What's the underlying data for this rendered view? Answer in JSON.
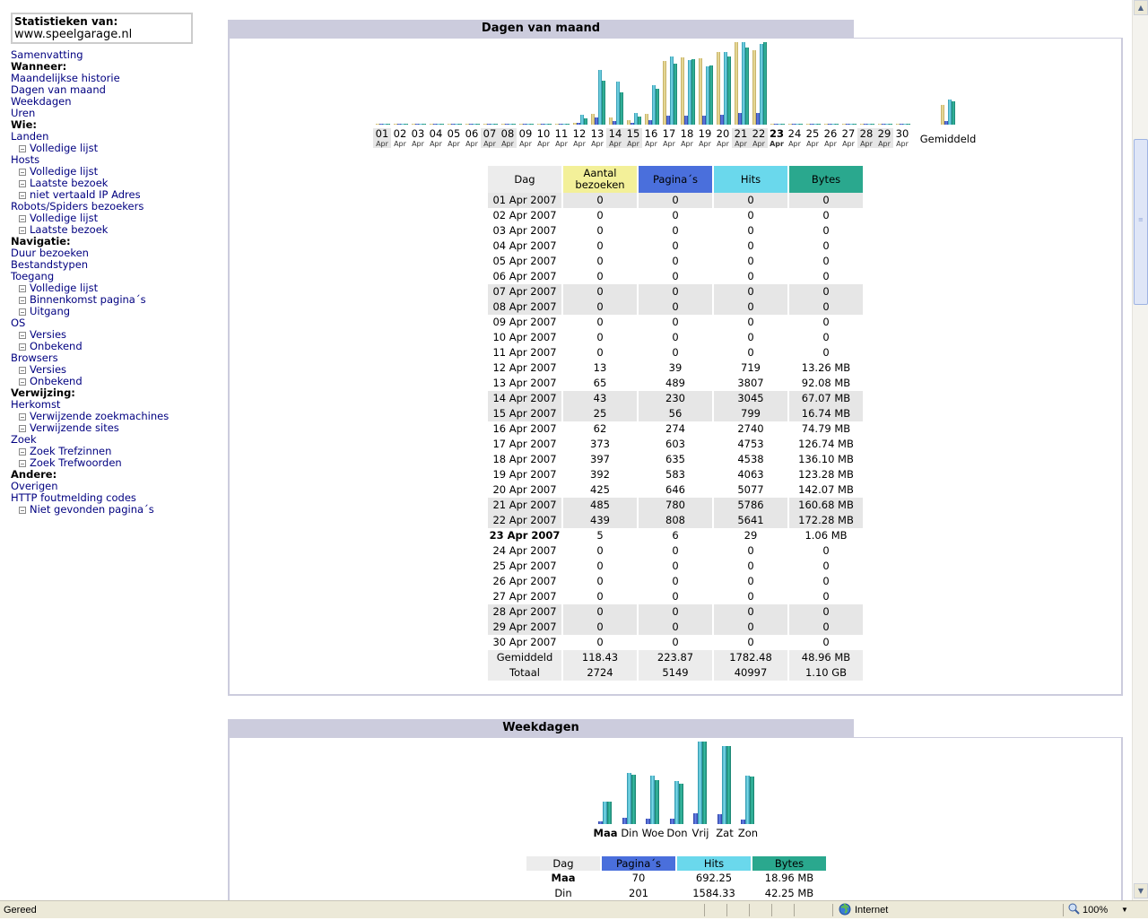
{
  "sidebar": {
    "stats_title": "Statistieken van:",
    "site": "www.speelgarage.nl",
    "items": [
      {
        "label": "Samenvatting",
        "type": "link"
      },
      {
        "label": "Wanneer:",
        "type": "head"
      },
      {
        "label": "Maandelijkse historie",
        "type": "link"
      },
      {
        "label": "Dagen van maand",
        "type": "link"
      },
      {
        "label": "Weekdagen",
        "type": "link"
      },
      {
        "label": "Uren",
        "type": "link"
      },
      {
        "label": "Wie:",
        "type": "head"
      },
      {
        "label": "Landen",
        "type": "link"
      },
      {
        "label": "Volledige lijst",
        "type": "sub"
      },
      {
        "label": "Hosts",
        "type": "link"
      },
      {
        "label": "Volledige lijst",
        "type": "sub"
      },
      {
        "label": "Laatste bezoek",
        "type": "sub"
      },
      {
        "label": "niet vertaald IP Adres",
        "type": "sub"
      },
      {
        "label": "Robots/Spiders bezoekers",
        "type": "link"
      },
      {
        "label": "Volledige lijst",
        "type": "sub"
      },
      {
        "label": "Laatste bezoek",
        "type": "sub"
      },
      {
        "label": "Navigatie:",
        "type": "head"
      },
      {
        "label": "Duur bezoeken",
        "type": "link"
      },
      {
        "label": "Bestandstypen",
        "type": "link"
      },
      {
        "label": "Toegang",
        "type": "link"
      },
      {
        "label": "Volledige lijst",
        "type": "sub"
      },
      {
        "label": "Binnenkomst pagina´s",
        "type": "sub"
      },
      {
        "label": "Uitgang",
        "type": "sub"
      },
      {
        "label": "OS",
        "type": "link"
      },
      {
        "label": "Versies",
        "type": "sub"
      },
      {
        "label": "Onbekend",
        "type": "sub"
      },
      {
        "label": "Browsers",
        "type": "link"
      },
      {
        "label": "Versies",
        "type": "sub"
      },
      {
        "label": "Onbekend",
        "type": "sub"
      },
      {
        "label": "Verwijzing:",
        "type": "head"
      },
      {
        "label": "Herkomst",
        "type": "link"
      },
      {
        "label": "Verwijzende zoekmachines",
        "type": "sub"
      },
      {
        "label": "Verwijzende sites",
        "type": "sub"
      },
      {
        "label": "Zoek",
        "type": "link"
      },
      {
        "label": "Zoek Trefzinnen",
        "type": "sub"
      },
      {
        "label": "Zoek Trefwoorden",
        "type": "sub"
      },
      {
        "label": "Andere:",
        "type": "head"
      },
      {
        "label": "Overigen",
        "type": "link"
      },
      {
        "label": "HTTP foutmelding codes",
        "type": "link"
      },
      {
        "label": "Niet gevonden pagina´s",
        "type": "sub"
      }
    ]
  },
  "days_section": {
    "title": "Dagen van maand",
    "month_label": "Apr",
    "average_label": "Gemiddeld",
    "columns": [
      "Dag",
      "Aantal bezoeken",
      "Pagina´s",
      "Hits",
      "Bytes"
    ],
    "rows": [
      {
        "day": "01",
        "date": "01 Apr 2007",
        "visits": 0,
        "pages": 0,
        "hits": 0,
        "bytes": "0",
        "weekend": true
      },
      {
        "day": "02",
        "date": "02 Apr 2007",
        "visits": 0,
        "pages": 0,
        "hits": 0,
        "bytes": "0",
        "weekend": false
      },
      {
        "day": "03",
        "date": "03 Apr 2007",
        "visits": 0,
        "pages": 0,
        "hits": 0,
        "bytes": "0",
        "weekend": false
      },
      {
        "day": "04",
        "date": "04 Apr 2007",
        "visits": 0,
        "pages": 0,
        "hits": 0,
        "bytes": "0",
        "weekend": false
      },
      {
        "day": "05",
        "date": "05 Apr 2007",
        "visits": 0,
        "pages": 0,
        "hits": 0,
        "bytes": "0",
        "weekend": false
      },
      {
        "day": "06",
        "date": "06 Apr 2007",
        "visits": 0,
        "pages": 0,
        "hits": 0,
        "bytes": "0",
        "weekend": false
      },
      {
        "day": "07",
        "date": "07 Apr 2007",
        "visits": 0,
        "pages": 0,
        "hits": 0,
        "bytes": "0",
        "weekend": true
      },
      {
        "day": "08",
        "date": "08 Apr 2007",
        "visits": 0,
        "pages": 0,
        "hits": 0,
        "bytes": "0",
        "weekend": true
      },
      {
        "day": "09",
        "date": "09 Apr 2007",
        "visits": 0,
        "pages": 0,
        "hits": 0,
        "bytes": "0",
        "weekend": false
      },
      {
        "day": "10",
        "date": "10 Apr 2007",
        "visits": 0,
        "pages": 0,
        "hits": 0,
        "bytes": "0",
        "weekend": false
      },
      {
        "day": "11",
        "date": "11 Apr 2007",
        "visits": 0,
        "pages": 0,
        "hits": 0,
        "bytes": "0",
        "weekend": false
      },
      {
        "day": "12",
        "date": "12 Apr 2007",
        "visits": 13,
        "pages": 39,
        "hits": 719,
        "bytes": "13.26 MB",
        "bytes_mb": 13.26,
        "weekend": false
      },
      {
        "day": "13",
        "date": "13 Apr 2007",
        "visits": 65,
        "pages": 489,
        "hits": 3807,
        "bytes": "92.08 MB",
        "bytes_mb": 92.08,
        "weekend": false
      },
      {
        "day": "14",
        "date": "14 Apr 2007",
        "visits": 43,
        "pages": 230,
        "hits": 3045,
        "bytes": "67.07 MB",
        "bytes_mb": 67.07,
        "weekend": true
      },
      {
        "day": "15",
        "date": "15 Apr 2007",
        "visits": 25,
        "pages": 56,
        "hits": 799,
        "bytes": "16.74 MB",
        "bytes_mb": 16.74,
        "weekend": true
      },
      {
        "day": "16",
        "date": "16 Apr 2007",
        "visits": 62,
        "pages": 274,
        "hits": 2740,
        "bytes": "74.79 MB",
        "bytes_mb": 74.79,
        "weekend": false
      },
      {
        "day": "17",
        "date": "17 Apr 2007",
        "visits": 373,
        "pages": 603,
        "hits": 4753,
        "bytes": "126.74 MB",
        "bytes_mb": 126.74,
        "weekend": false
      },
      {
        "day": "18",
        "date": "18 Apr 2007",
        "visits": 397,
        "pages": 635,
        "hits": 4538,
        "bytes": "136.10 MB",
        "bytes_mb": 136.1,
        "weekend": false
      },
      {
        "day": "19",
        "date": "19 Apr 2007",
        "visits": 392,
        "pages": 583,
        "hits": 4063,
        "bytes": "123.28 MB",
        "bytes_mb": 123.28,
        "weekend": false
      },
      {
        "day": "20",
        "date": "20 Apr 2007",
        "visits": 425,
        "pages": 646,
        "hits": 5077,
        "bytes": "142.07 MB",
        "bytes_mb": 142.07,
        "weekend": false
      },
      {
        "day": "21",
        "date": "21 Apr 2007",
        "visits": 485,
        "pages": 780,
        "hits": 5786,
        "bytes": "160.68 MB",
        "bytes_mb": 160.68,
        "weekend": true
      },
      {
        "day": "22",
        "date": "22 Apr 2007",
        "visits": 439,
        "pages": 808,
        "hits": 5641,
        "bytes": "172.28 MB",
        "bytes_mb": 172.28,
        "weekend": true
      },
      {
        "day": "23",
        "date": "23 Apr 2007",
        "visits": 5,
        "pages": 6,
        "hits": 29,
        "bytes": "1.06 MB",
        "bytes_mb": 1.06,
        "weekend": false,
        "today": true
      },
      {
        "day": "24",
        "date": "24 Apr 2007",
        "visits": 0,
        "pages": 0,
        "hits": 0,
        "bytes": "0",
        "weekend": false
      },
      {
        "day": "25",
        "date": "25 Apr 2007",
        "visits": 0,
        "pages": 0,
        "hits": 0,
        "bytes": "0",
        "weekend": false
      },
      {
        "day": "26",
        "date": "26 Apr 2007",
        "visits": 0,
        "pages": 0,
        "hits": 0,
        "bytes": "0",
        "weekend": false
      },
      {
        "day": "27",
        "date": "27 Apr 2007",
        "visits": 0,
        "pages": 0,
        "hits": 0,
        "bytes": "0",
        "weekend": false
      },
      {
        "day": "28",
        "date": "28 Apr 2007",
        "visits": 0,
        "pages": 0,
        "hits": 0,
        "bytes": "0",
        "weekend": true
      },
      {
        "day": "29",
        "date": "29 Apr 2007",
        "visits": 0,
        "pages": 0,
        "hits": 0,
        "bytes": "0",
        "weekend": true
      },
      {
        "day": "30",
        "date": "30 Apr 2007",
        "visits": 0,
        "pages": 0,
        "hits": 0,
        "bytes": "0",
        "weekend": false
      }
    ],
    "average": {
      "label": "Gemiddeld",
      "visits": "118.43",
      "pages": "223.87",
      "hits": "1782.48",
      "bytes": "48.96 MB",
      "v": 118.43,
      "p": 223.87,
      "h": 1782.48,
      "b_mb": 48.96
    },
    "total": {
      "label": "Totaal",
      "visits": "2724",
      "pages": "5149",
      "hits": "40997",
      "bytes": "1.10 GB"
    }
  },
  "weekdays_section": {
    "title": "Weekdagen",
    "columns": [
      "Dag",
      "Pagina´s",
      "Hits",
      "Bytes"
    ],
    "days": [
      {
        "label": "Maa",
        "bold": true,
        "pages": "70",
        "hits": "692.25",
        "bytes": "18.96 MB",
        "p": 70,
        "h": 692.25,
        "b_mb": 18.96
      },
      {
        "label": "Din",
        "pages": "201",
        "hits": "1584.33",
        "bytes": "42.25 MB",
        "p": 201,
        "h": 1584.33,
        "b_mb": 42.25
      },
      {
        "label": "Woe",
        "p": 176,
        "h": 1500,
        "b_mb": 38
      },
      {
        "label": "Don",
        "p": 160,
        "h": 1320,
        "b_mb": 35
      },
      {
        "label": "Vrij",
        "p": 330,
        "h": 2540,
        "b_mb": 71
      },
      {
        "label": "Zat",
        "p": 290,
        "h": 2400,
        "b_mb": 67
      },
      {
        "label": "Zon",
        "p": 150,
        "h": 1480,
        "b_mb": 41
      }
    ]
  },
  "statusbar": {
    "status": "Gereed",
    "zone": "Internet",
    "zoom": "100%"
  },
  "colors": {
    "visits": "#e8d890",
    "pages": "#4a6fdc",
    "hits": "#6ad8ec",
    "bytes": "#2aa88e",
    "title_bg": "#ccccdd"
  }
}
